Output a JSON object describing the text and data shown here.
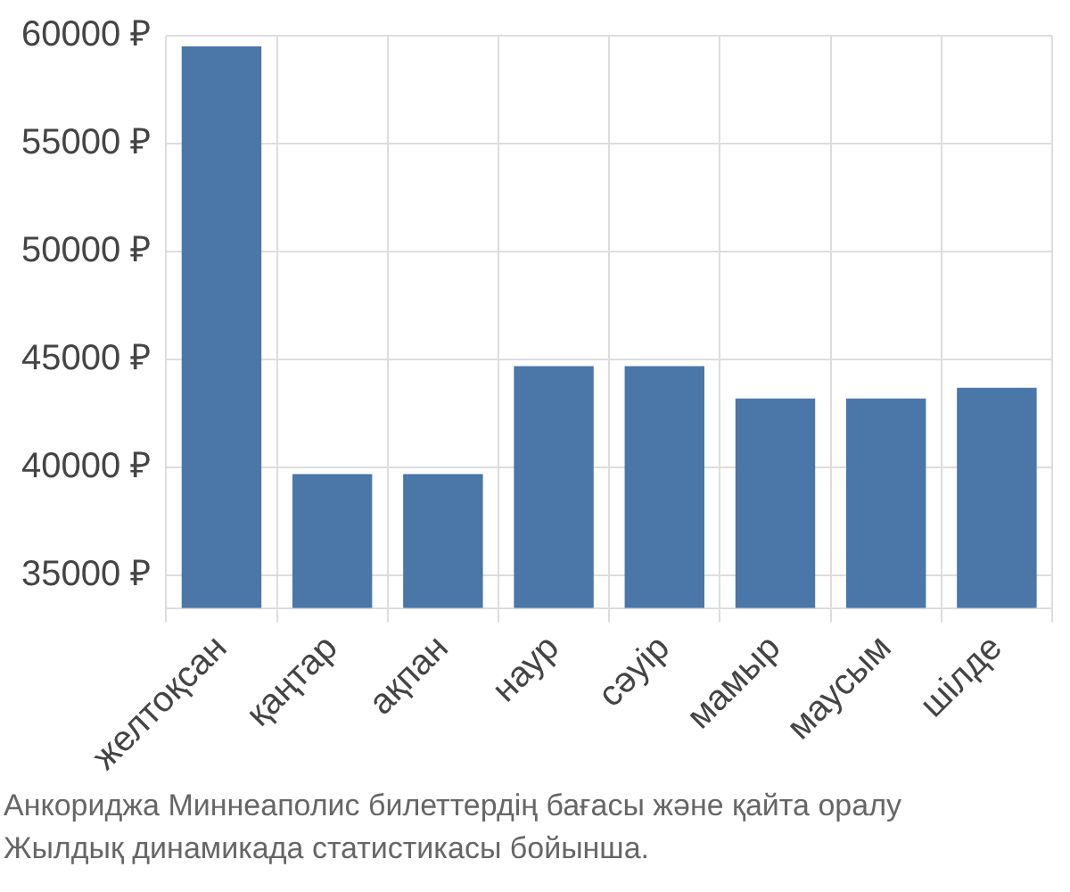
{
  "chart_data": {
    "type": "bar",
    "categories": [
      "желтоқсан",
      "қаңтар",
      "ақпан",
      "наур",
      "сәуір",
      "мамыр",
      "маусым",
      "шілде"
    ],
    "values": [
      59500,
      39700,
      39700,
      44700,
      44700,
      43200,
      43200,
      43700
    ],
    "color": "#4a76a8",
    "ylim": [
      33500,
      60000
    ],
    "yticks": [
      {
        "value": 35000,
        "label": "35000 ₽"
      },
      {
        "value": 40000,
        "label": "40000 ₽"
      },
      {
        "value": 45000,
        "label": "45000 ₽"
      },
      {
        "value": 50000,
        "label": "50000 ₽"
      },
      {
        "value": 55000,
        "label": "55000 ₽"
      },
      {
        "value": 60000,
        "label": "60000 ₽"
      }
    ],
    "grid": true,
    "legend": false,
    "annotations": [
      "Анкориджа Миннеаполис билеттердің бағасы және қайта оралу",
      "Жылдық динамикада статистикасы бойынша."
    ]
  }
}
